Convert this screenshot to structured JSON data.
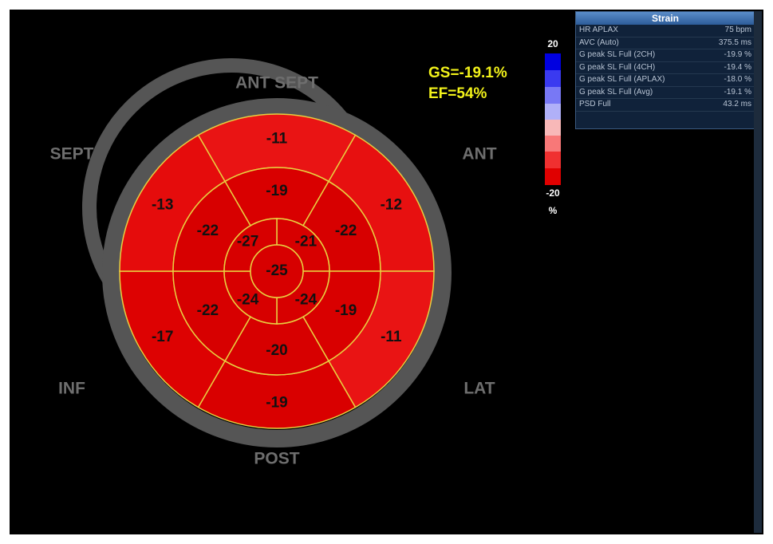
{
  "orientation": {
    "ant_sept": "ANT  SEPT",
    "sept": "SEPT",
    "ant": "ANT",
    "inf": "INF",
    "lat": "LAT",
    "post": "POST"
  },
  "summary": {
    "gs": "GS=-19.1%",
    "ef": "EF=54%"
  },
  "scale": {
    "max": 20,
    "min": -20,
    "unit": "%"
  },
  "segments": {
    "basal": [
      -11,
      -12,
      -11,
      -19,
      -17,
      -13
    ],
    "mid": [
      -19,
      -22,
      -19,
      -20,
      -22,
      -22
    ],
    "apical": [
      -21,
      -24,
      -24,
      -27
    ],
    "apex": -25
  },
  "panel": {
    "title": "Strain",
    "rows": [
      [
        "HR APLAX",
        "75 bpm"
      ],
      [
        "AVC (Auto)",
        "375.5 ms"
      ],
      [
        "G peak SL Full (2CH)",
        "-19.9 %"
      ],
      [
        "G peak SL Full (4CH)",
        "-19.4 %"
      ],
      [
        "G peak SL Full (APLAX)",
        "-18.0 %"
      ],
      [
        "G peak SL Full (Avg)",
        "-19.1 %"
      ],
      [
        "PSD Full",
        "43.2 ms"
      ]
    ]
  }
}
